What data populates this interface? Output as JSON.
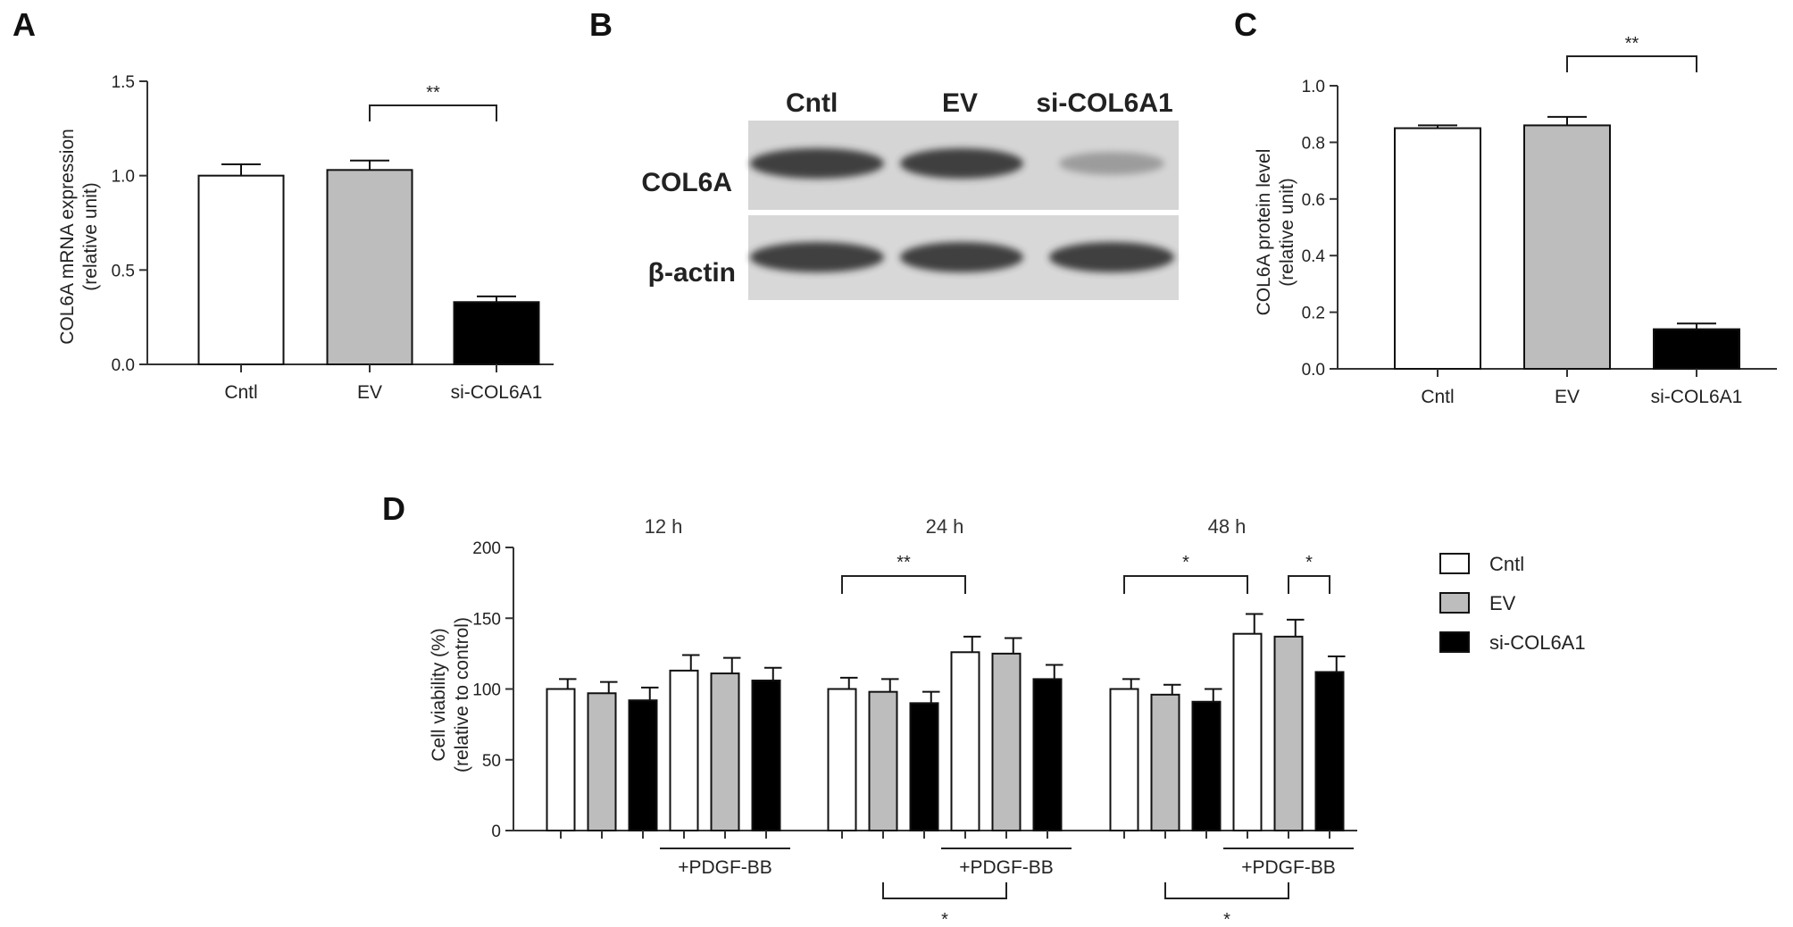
{
  "panels": {
    "A": {
      "letter": "A"
    },
    "B": {
      "letter": "B"
    },
    "C": {
      "letter": "C"
    },
    "D": {
      "letter": "D"
    }
  },
  "colors": {
    "cntl": "#ffffff",
    "ev": "#bdbdbd",
    "si": "#000000",
    "stroke": "#111111"
  },
  "chart_data": [
    {
      "panel": "A",
      "type": "bar",
      "categories": [
        "Cntl",
        "EV",
        "si-COL6A1"
      ],
      "values": [
        1.0,
        1.03,
        0.33
      ],
      "errors": [
        0.06,
        0.05,
        0.03
      ],
      "ylim": [
        0,
        1.5
      ],
      "yticks": [
        "0.0",
        "0.5",
        "1.0",
        "1.5"
      ],
      "ylabel": [
        "COL6A mRNA expression",
        "(relative unit)"
      ],
      "significance": [
        {
          "from": 1,
          "to": 2,
          "label": "**"
        }
      ]
    },
    {
      "panel": "C",
      "type": "bar",
      "categories": [
        "Cntl",
        "EV",
        "si-COL6A1"
      ],
      "values": [
        0.85,
        0.86,
        0.14
      ],
      "errors": [
        0.01,
        0.03,
        0.02
      ],
      "ylim": [
        0,
        1.0
      ],
      "yticks": [
        "0.0",
        "0.2",
        "0.4",
        "0.6",
        "0.8",
        "1.0"
      ],
      "ylabel": [
        "COL6A protein level",
        "(relative unit)"
      ],
      "significance": [
        {
          "from": 1,
          "to": 2,
          "label": "**"
        }
      ]
    },
    {
      "panel": "D",
      "type": "bar",
      "ylim": [
        0,
        200
      ],
      "yticks": [
        "0",
        "50",
        "100",
        "150",
        "200"
      ],
      "ylabel": [
        "Cell viability (%)",
        "(relative to control)"
      ],
      "legend": [
        "Cntl",
        "EV",
        "si-COL6A1"
      ],
      "treatment_label": "+PDGF-BB",
      "groups": [
        {
          "time": "12 h",
          "values": [
            100,
            97,
            92,
            113,
            111,
            106
          ],
          "errors": [
            7,
            8,
            9,
            11,
            11,
            9
          ]
        },
        {
          "time": "24 h",
          "values": [
            100,
            98,
            90,
            126,
            125,
            107
          ],
          "errors": [
            8,
            9,
            8,
            11,
            11,
            10
          ]
        },
        {
          "time": "48 h",
          "values": [
            100,
            96,
            91,
            139,
            137,
            112
          ],
          "errors": [
            7,
            7,
            9,
            14,
            12,
            11
          ]
        }
      ],
      "significance_top": [
        {
          "group": 1,
          "from": 0,
          "to": 3,
          "label": "**"
        },
        {
          "group": 2,
          "from": 0,
          "to": 3,
          "label": "*"
        },
        {
          "group": 2,
          "from": 4,
          "to": 5,
          "label": "*"
        }
      ],
      "significance_bottom": [
        {
          "group": 1,
          "label": "*"
        },
        {
          "group": 2,
          "label": "*"
        }
      ]
    }
  ],
  "blot": {
    "lanes": [
      "Cntl",
      "EV",
      "si-COL6A1"
    ],
    "rows": [
      {
        "label": "COL6A",
        "intensity": [
          1.0,
          1.0,
          0.45
        ]
      },
      {
        "label": "β-actin",
        "intensity": [
          1.0,
          1.0,
          1.0
        ]
      }
    ]
  }
}
